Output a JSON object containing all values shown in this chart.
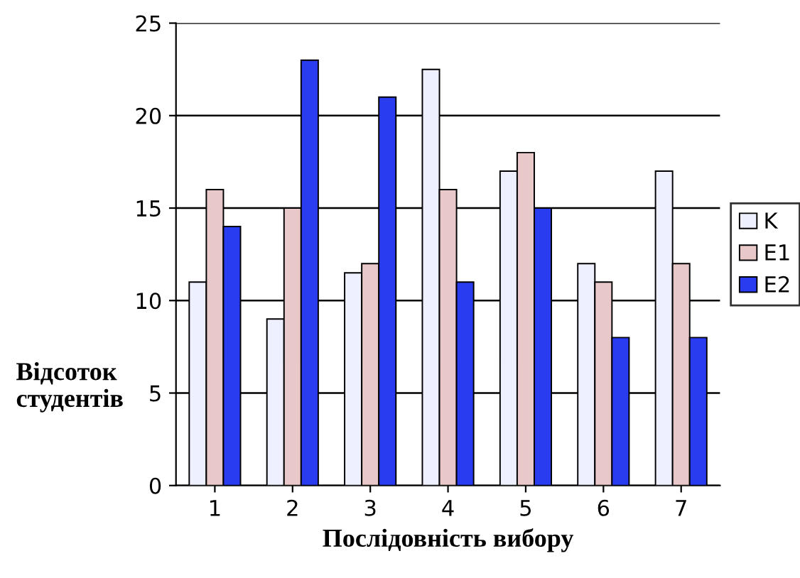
{
  "chart_data": {
    "type": "bar",
    "xlabel": "Послідовність вибору",
    "ylabel": "Відсоток\nстудентів",
    "categories": [
      "1",
      "2",
      "3",
      "4",
      "5",
      "6",
      "7"
    ],
    "series": [
      {
        "name": "K",
        "color": "#eef0ff",
        "values": [
          11,
          9,
          11.5,
          22.5,
          17,
          12,
          17
        ]
      },
      {
        "name": "E1",
        "color": "#e8c8c8",
        "values": [
          16,
          15,
          12,
          16,
          18,
          11,
          12
        ]
      },
      {
        "name": "E2",
        "color": "#2a3cf0",
        "values": [
          14,
          23,
          21,
          11,
          15,
          8,
          8
        ]
      }
    ],
    "ylim": [
      0,
      25
    ],
    "yticks": [
      0,
      5,
      10,
      15,
      20,
      25
    ],
    "grid": "y",
    "legend": "right"
  }
}
